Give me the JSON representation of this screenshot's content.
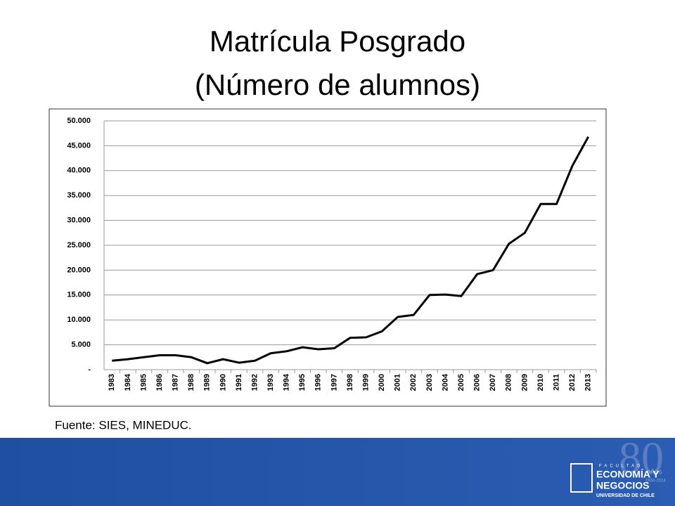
{
  "chart_data": {
    "type": "line",
    "title": "Matrícula Posgrado",
    "subtitle": "(Número de alumnos)",
    "categories": [
      "1983",
      "1984",
      "1985",
      "1986",
      "1987",
      "1988",
      "1989",
      "1990",
      "1991",
      "1992",
      "1993",
      "1994",
      "1995",
      "1996",
      "1997",
      "1998",
      "1999",
      "2000",
      "2001",
      "2002",
      "2003",
      "2004",
      "2005",
      "2006",
      "2007",
      "2008",
      "2009",
      "2010",
      "2011",
      "2012",
      "2013"
    ],
    "values": [
      1800,
      2100,
      2500,
      2900,
      2900,
      2500,
      1300,
      2100,
      1400,
      1800,
      3300,
      3700,
      4500,
      4100,
      4300,
      6400,
      6500,
      7700,
      10600,
      11000,
      15000,
      15100,
      14800,
      19200,
      20000,
      25300,
      27500,
      33300,
      33300,
      41000,
      46800
    ],
    "color": "#000000",
    "ylim": [
      0,
      50000
    ],
    "yticks": [
      {
        "value": 0,
        "label": "-"
      },
      {
        "value": 5000,
        "label": "5.000"
      },
      {
        "value": 10000,
        "label": "10.000"
      },
      {
        "value": 15000,
        "label": "15.000"
      },
      {
        "value": 20000,
        "label": "20.000"
      },
      {
        "value": 25000,
        "label": "25.000"
      },
      {
        "value": 30000,
        "label": "30.000"
      },
      {
        "value": 35000,
        "label": "35.000"
      },
      {
        "value": 40000,
        "label": "40.000"
      },
      {
        "value": 45000,
        "label": "45.000"
      },
      {
        "value": 50000,
        "label": "50.000"
      }
    ],
    "grid": true
  },
  "footer": {
    "source": "Fuente: SIES, MINEDUC.",
    "logo": {
      "faculty": "FACULTAD",
      "line1": "ECONOMÍA Y",
      "line2": "NEGOCIOS",
      "university": "UNIVERSIDAD DE CHILE",
      "anniversary": "80",
      "years": "años",
      "period": "1934-2014"
    }
  }
}
